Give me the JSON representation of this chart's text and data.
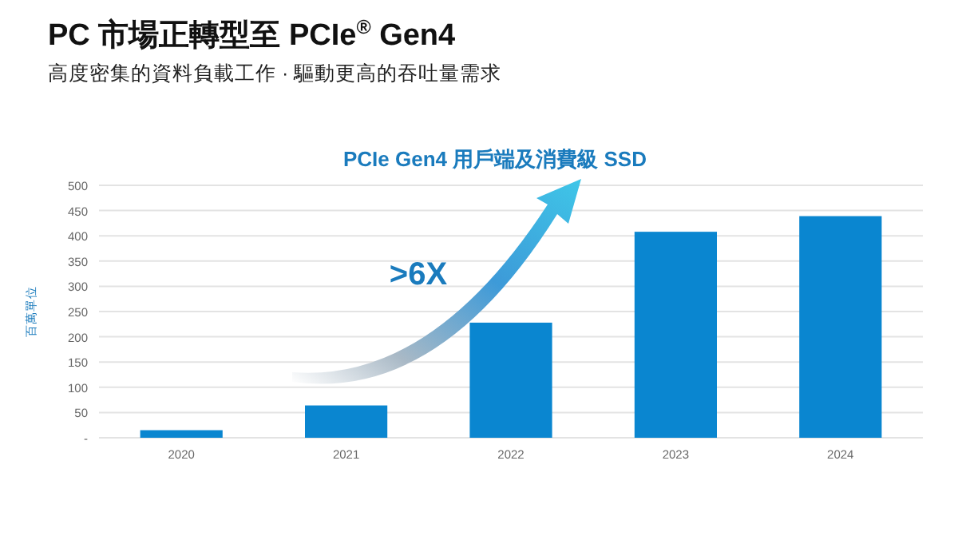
{
  "chart_data": {
    "type": "bar",
    "title": "PC 市場正轉型至 PCIe$^{®}$ Gen4",
    "subtitle": "高度密集的資料負載工作 · 驅動更高的吞吐量需求",
    "ylabel": "百萬單位",
    "annotations": [
      "PCIe Gen4 用戶端及消費級 SSD",
      ">6X"
    ],
    "categories": [
      "2020",
      "2021",
      "2022",
      "2023",
      "2024"
    ],
    "values": [
      15,
      64,
      228,
      408,
      439
    ],
    "color": "#0a86d0",
    "ylim": [
      0,
      500
    ],
    "yticks": [
      {
        "value": 0,
        "label": "-"
      },
      50,
      100,
      150,
      200,
      250,
      300,
      350,
      400,
      450,
      500
    ],
    "grid": "y"
  }
}
